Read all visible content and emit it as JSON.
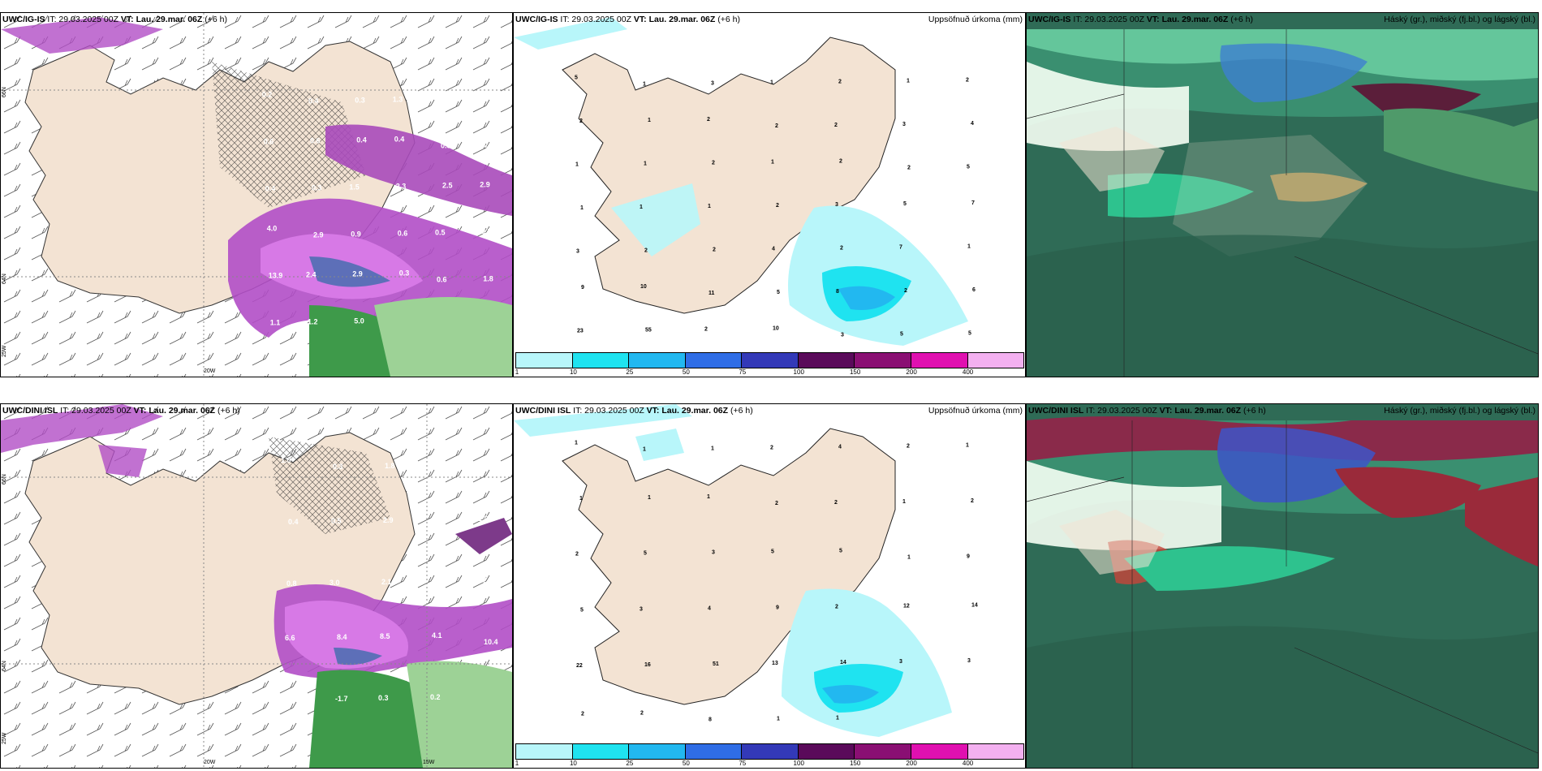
{
  "rows": [
    {
      "model": "UWC/IG-IS",
      "it_label": "IT: 29.03.2025 00Z",
      "vt_label": "VT:",
      "vt_value": "Lau. 29.mar. 06Z",
      "step": "(+6 h)"
    },
    {
      "model": "UWC/DINI ISL",
      "it_label": "IT: 29.03.2025 00Z",
      "vt_label": "VT:",
      "vt_value": "Lau. 29.mar. 06Z",
      "step": "(+6 h)"
    }
  ],
  "precip_title": "Uppsöfnuð úrkoma (mm)",
  "cloud_title": "Háský (gr.), miðský (fj.bl.) og lágský (bl.)",
  "colorbar": {
    "ticks": [
      "1",
      "10",
      "25",
      "50",
      "75",
      "100",
      "150",
      "200",
      "400"
    ],
    "colors": [
      "#b8f6fa",
      "#1fe3f0",
      "#22b8f0",
      "#2f6de6",
      "#3339b8",
      "#5a0a5a",
      "#8a0f73",
      "#e010b0",
      "#f3b0f0"
    ]
  },
  "wind_labels": {
    "top": {
      "lat_66": "66N",
      "lat_64": "64N",
      "lon_25": "25W",
      "lon_20": "20W"
    },
    "bottom": {
      "lat_66": "66N",
      "lat_64": "64N",
      "lon_25": "25W",
      "lon_20": "20W",
      "lon_15": "15W"
    }
  },
  "top_wind_values": [
    "0.2",
    "0.4",
    "0.3",
    "1.3",
    "0.4",
    "0.7",
    "0.6",
    "0.6",
    "0.4",
    "0.4",
    "0.3",
    "0.2",
    "0.4",
    "0.3",
    "1.5",
    "2.3",
    "2.5",
    "2.9",
    "4.0",
    "2.9",
    "0.9",
    "0.6",
    "0.5",
    "0.7",
    "13.9",
    "2.4",
    "2.9",
    "0.3",
    "0.6",
    "1.8",
    "1.1",
    "1.2",
    "5.0"
  ],
  "bottom_wind_values": [
    "1.0",
    "0.3",
    "1.8",
    "0.7",
    "1.3",
    "0.4",
    "0.5",
    "2.9",
    "0.4",
    "2.0",
    "0.8",
    "3.0",
    "2.1",
    "3.4",
    "2.7",
    "6.6",
    "8.4",
    "8.5",
    "4.1",
    "10.4",
    "1.6",
    "-1.7",
    "0.3",
    "0.2"
  ],
  "top_precip_values": [
    "5",
    "1",
    "3",
    "1",
    "2",
    "1",
    "2",
    "2",
    "1",
    "2",
    "2",
    "2",
    "3",
    "4",
    "1",
    "1",
    "2",
    "1",
    "2",
    "2",
    "5",
    "1",
    "1",
    "1",
    "2",
    "3",
    "5",
    "7",
    "3",
    "2",
    "2",
    "4",
    "2",
    "7",
    "1",
    "9",
    "10",
    "11",
    "5",
    "8",
    "2",
    "6",
    "23",
    "55",
    "2",
    "10",
    "3",
    "5",
    "5"
  ],
  "bottom_precip_values": [
    "1",
    "1",
    "1",
    "2",
    "4",
    "2",
    "1",
    "1",
    "1",
    "1",
    "2",
    "2",
    "1",
    "2",
    "2",
    "5",
    "3",
    "5",
    "5",
    "1",
    "9",
    "5",
    "3",
    "4",
    "9",
    "2",
    "12",
    "14",
    "22",
    "16",
    "51",
    "13",
    "14",
    "3",
    "3",
    "2",
    "2",
    "8",
    "1",
    "1"
  ]
}
